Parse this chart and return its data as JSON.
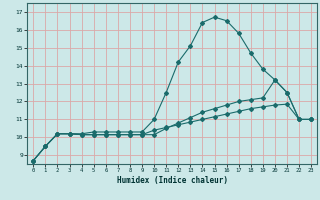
{
  "title": "",
  "xlabel": "Humidex (Indice chaleur)",
  "ylabel": "",
  "bg_color": "#cce8e8",
  "grid_color": "#dba8a8",
  "line_color": "#1a6b6b",
  "xlim": [
    -0.5,
    23.5
  ],
  "ylim": [
    8.5,
    17.5
  ],
  "xticks": [
    0,
    1,
    2,
    3,
    4,
    5,
    6,
    7,
    8,
    9,
    10,
    11,
    12,
    13,
    14,
    15,
    16,
    17,
    18,
    19,
    20,
    21,
    22,
    23
  ],
  "yticks": [
    9,
    10,
    11,
    12,
    13,
    14,
    15,
    16,
    17
  ],
  "line1_x": [
    0,
    1,
    2,
    3,
    4,
    5,
    6,
    7,
    8,
    9,
    10,
    11,
    12,
    13,
    14,
    15,
    16,
    17,
    18,
    19,
    20,
    21,
    22,
    23
  ],
  "line1_y": [
    8.7,
    9.5,
    10.2,
    10.2,
    10.2,
    10.3,
    10.3,
    10.3,
    10.3,
    10.3,
    11.0,
    12.5,
    14.2,
    15.1,
    16.4,
    16.7,
    16.5,
    15.8,
    14.7,
    13.8,
    13.2,
    12.5,
    11.0,
    11.0
  ],
  "line2_x": [
    0,
    1,
    2,
    3,
    4,
    5,
    6,
    7,
    8,
    9,
    10,
    11,
    12,
    13,
    14,
    15,
    16,
    17,
    18,
    19,
    20,
    21,
    22,
    23
  ],
  "line2_y": [
    8.7,
    9.5,
    10.2,
    10.2,
    10.15,
    10.15,
    10.15,
    10.15,
    10.15,
    10.15,
    10.15,
    10.5,
    10.8,
    11.1,
    11.4,
    11.6,
    11.8,
    12.0,
    12.1,
    12.2,
    13.2,
    12.5,
    11.0,
    11.0
  ],
  "line3_x": [
    0,
    1,
    2,
    3,
    4,
    5,
    6,
    7,
    8,
    9,
    10,
    11,
    12,
    13,
    14,
    15,
    16,
    17,
    18,
    19,
    20,
    21,
    22,
    23
  ],
  "line3_y": [
    8.7,
    9.5,
    10.2,
    10.2,
    10.15,
    10.15,
    10.15,
    10.15,
    10.15,
    10.15,
    10.4,
    10.55,
    10.7,
    10.85,
    11.0,
    11.15,
    11.3,
    11.45,
    11.6,
    11.7,
    11.8,
    11.85,
    11.0,
    11.0
  ]
}
